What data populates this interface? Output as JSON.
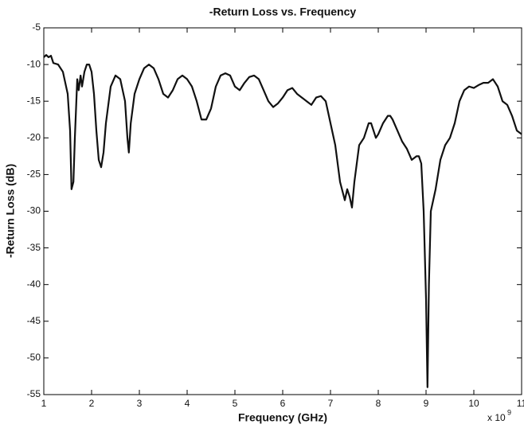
{
  "chart_data": {
    "type": "line",
    "title": "-Return Loss vs. Frequency",
    "x_label": "Frequency (GHz)",
    "y_label": "-Return Loss (dB)",
    "x_scale_label": "x 10",
    "x_scale_exponent": "9",
    "xlim": [
      1,
      11
    ],
    "ylim": [
      -55,
      -5
    ],
    "xticks": [
      1,
      2,
      3,
      4,
      5,
      6,
      7,
      8,
      9,
      10,
      11
    ],
    "yticks": [
      -55,
      -50,
      -45,
      -40,
      -35,
      -30,
      -25,
      -20,
      -15,
      -10,
      -5
    ],
    "grid": false,
    "x": [
      1.0,
      1.05,
      1.1,
      1.15,
      1.2,
      1.3,
      1.4,
      1.5,
      1.55,
      1.58,
      1.62,
      1.65,
      1.7,
      1.73,
      1.77,
      1.8,
      1.85,
      1.9,
      1.95,
      2.0,
      2.05,
      2.1,
      2.15,
      2.2,
      2.25,
      2.3,
      2.4,
      2.5,
      2.6,
      2.7,
      2.75,
      2.78,
      2.82,
      2.9,
      3.0,
      3.1,
      3.2,
      3.3,
      3.4,
      3.5,
      3.6,
      3.7,
      3.8,
      3.9,
      4.0,
      4.1,
      4.2,
      4.3,
      4.4,
      4.5,
      4.6,
      4.7,
      4.8,
      4.9,
      5.0,
      5.1,
      5.2,
      5.3,
      5.4,
      5.5,
      5.6,
      5.7,
      5.8,
      5.9,
      6.0,
      6.1,
      6.2,
      6.3,
      6.4,
      6.5,
      6.6,
      6.7,
      6.8,
      6.9,
      7.0,
      7.1,
      7.2,
      7.3,
      7.35,
      7.4,
      7.45,
      7.5,
      7.6,
      7.7,
      7.8,
      7.85,
      7.9,
      7.95,
      8.0,
      8.1,
      8.2,
      8.25,
      8.3,
      8.4,
      8.5,
      8.6,
      8.7,
      8.8,
      8.85,
      8.9,
      8.95,
      9.0,
      9.03,
      9.06,
      9.1,
      9.2,
      9.3,
      9.4,
      9.5,
      9.6,
      9.7,
      9.8,
      9.9,
      10.0,
      10.1,
      10.2,
      10.3,
      10.4,
      10.5,
      10.6,
      10.7,
      10.8,
      10.9,
      11.0
    ],
    "series": [
      {
        "name": "-Return Loss",
        "color": "#111111",
        "values": [
          -9,
          -8.7,
          -9,
          -8.8,
          -9.8,
          -10,
          -11,
          -14,
          -19,
          -27,
          -26,
          -20,
          -12,
          -13.5,
          -11.5,
          -13,
          -11,
          -10,
          -10,
          -11,
          -14,
          -19,
          -23,
          -24,
          -22,
          -18,
          -13,
          -11.5,
          -12,
          -15,
          -20,
          -22,
          -18,
          -14,
          -12,
          -10.5,
          -10,
          -10.5,
          -12,
          -14,
          -14.5,
          -13.5,
          -12,
          -11.5,
          -12,
          -13,
          -15,
          -17.5,
          -17.5,
          -16,
          -13,
          -11.5,
          -11.2,
          -11.5,
          -13,
          -13.5,
          -12.5,
          -11.7,
          -11.5,
          -12,
          -13.5,
          -15,
          -15.8,
          -15.3,
          -14.5,
          -13.5,
          -13.2,
          -14,
          -14.5,
          -15,
          -15.5,
          -14.5,
          -14.3,
          -15,
          -18,
          -21,
          -26,
          -28.5,
          -27,
          -28,
          -29.5,
          -26,
          -21,
          -20,
          -18,
          -18,
          -19,
          -20,
          -19.5,
          -18,
          -17,
          -17,
          -17.5,
          -19,
          -20.5,
          -21.5,
          -23,
          -22.5,
          -22.5,
          -23.5,
          -30,
          -42,
          -54,
          -40,
          -30,
          -27,
          -23,
          -21,
          -20,
          -18,
          -15,
          -13.5,
          -13,
          -13.2,
          -12.8,
          -12.5,
          -12.5,
          -12,
          -13,
          -15,
          -15.5,
          -17,
          -19,
          -19.5
        ]
      }
    ]
  }
}
